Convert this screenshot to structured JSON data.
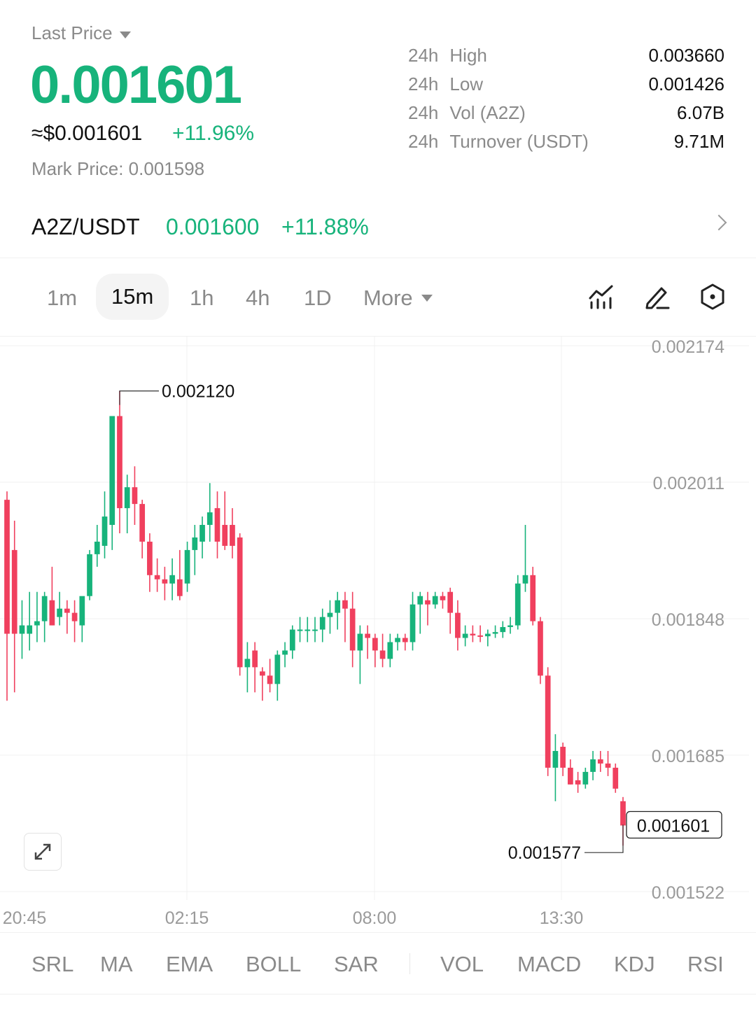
{
  "header": {
    "last_price_label": "Last Price",
    "last_price": "0.001601",
    "usd_price": "≈$0.001601",
    "change_pct": "+11.96%",
    "mark_price": "Mark Price:  0.001598"
  },
  "stats": [
    {
      "period": "24h",
      "name": "High",
      "value": "0.003660"
    },
    {
      "period": "24h",
      "name": "Low",
      "value": "0.001426"
    },
    {
      "period": "24h",
      "name": "Vol (A2Z)",
      "value": "6.07B"
    },
    {
      "period": "24h",
      "name": "Turnover (USDT)",
      "value": "9.71M"
    }
  ],
  "pair": {
    "name": "A2Z/USDT",
    "price": "0.001600",
    "change": "+11.88%"
  },
  "timeframes": {
    "items": [
      "1m",
      "15m",
      "1h",
      "4h",
      "1D"
    ],
    "selected": "15m",
    "more_label": "More"
  },
  "icons": [
    "indicator-chart-icon",
    "draw-pencil-icon",
    "settings-hexagon-icon",
    "expand-icon"
  ],
  "colors": {
    "up": "#17b37b",
    "down": "#f0405e",
    "muted": "#8a8a8a"
  },
  "chart_data": {
    "type": "candlestick",
    "y_axis_labels": [
      "0.002174",
      "0.002011",
      "0.001848",
      "0.001685",
      "0.001522"
    ],
    "x_axis_labels": [
      "20:45",
      "02:15",
      "08:00",
      "13:30"
    ],
    "ylim": [
      0.001522,
      0.002174
    ],
    "high_marker": "0.002120",
    "low_marker": "0.001577",
    "current_price_tag": "0.001601",
    "candles": [
      {
        "o": 0.00199,
        "h": 0.002,
        "l": 0.00175,
        "c": 0.00183
      },
      {
        "o": 0.00193,
        "h": 0.001965,
        "l": 0.00176,
        "c": 0.00183
      },
      {
        "o": 0.00183,
        "h": 0.00187,
        "l": 0.0018,
        "c": 0.00184
      },
      {
        "o": 0.00183,
        "h": 0.00188,
        "l": 0.00181,
        "c": 0.00184
      },
      {
        "o": 0.00184,
        "h": 0.00188,
        "l": 0.00182,
        "c": 0.001845
      },
      {
        "o": 0.001845,
        "h": 0.00188,
        "l": 0.00182,
        "c": 0.001875
      },
      {
        "o": 0.00187,
        "h": 0.00191,
        "l": 0.00184,
        "c": 0.00184
      },
      {
        "o": 0.00185,
        "h": 0.00188,
        "l": 0.00184,
        "c": 0.00186
      },
      {
        "o": 0.00186,
        "h": 0.00187,
        "l": 0.00183,
        "c": 0.001855
      },
      {
        "o": 0.001855,
        "h": 0.00187,
        "l": 0.00182,
        "c": 0.001845
      },
      {
        "o": 0.00184,
        "h": 0.00187,
        "l": 0.00182,
        "c": 0.001875
      },
      {
        "o": 0.001875,
        "h": 0.00193,
        "l": 0.00187,
        "c": 0.001925
      },
      {
        "o": 0.001925,
        "h": 0.00196,
        "l": 0.00191,
        "c": 0.00194
      },
      {
        "o": 0.001935,
        "h": 0.002,
        "l": 0.00192,
        "c": 0.00197
      },
      {
        "o": 0.00196,
        "h": 0.00209,
        "l": 0.00193,
        "c": 0.00209
      },
      {
        "o": 0.00209,
        "h": 0.00212,
        "l": 0.00195,
        "c": 0.00198
      },
      {
        "o": 0.00198,
        "h": 0.00202,
        "l": 0.00195,
        "c": 0.002005
      },
      {
        "o": 0.002005,
        "h": 0.00203,
        "l": 0.00196,
        "c": 0.001985
      },
      {
        "o": 0.001985,
        "h": 0.00199,
        "l": 0.00192,
        "c": 0.00194
      },
      {
        "o": 0.00194,
        "h": 0.00195,
        "l": 0.00188,
        "c": 0.0019
      },
      {
        "o": 0.0019,
        "h": 0.00192,
        "l": 0.00188,
        "c": 0.001895
      },
      {
        "o": 0.001895,
        "h": 0.00191,
        "l": 0.00187,
        "c": 0.00189
      },
      {
        "o": 0.00189,
        "h": 0.00192,
        "l": 0.00187,
        "c": 0.0019
      },
      {
        "o": 0.001895,
        "h": 0.00193,
        "l": 0.00187,
        "c": 0.001875
      },
      {
        "o": 0.00189,
        "h": 0.00194,
        "l": 0.00188,
        "c": 0.00193
      },
      {
        "o": 0.00193,
        "h": 0.00196,
        "l": 0.0019,
        "c": 0.001945
      },
      {
        "o": 0.00194,
        "h": 0.00197,
        "l": 0.00192,
        "c": 0.00196
      },
      {
        "o": 0.00196,
        "h": 0.00201,
        "l": 0.00194,
        "c": 0.001975
      },
      {
        "o": 0.00198,
        "h": 0.002,
        "l": 0.00192,
        "c": 0.00194
      },
      {
        "o": 0.00196,
        "h": 0.002,
        "l": 0.00193,
        "c": 0.001935
      },
      {
        "o": 0.00196,
        "h": 0.00198,
        "l": 0.00192,
        "c": 0.001935
      },
      {
        "o": 0.001945,
        "h": 0.00195,
        "l": 0.00178,
        "c": 0.00179
      },
      {
        "o": 0.00179,
        "h": 0.00182,
        "l": 0.00176,
        "c": 0.0018
      },
      {
        "o": 0.00181,
        "h": 0.00182,
        "l": 0.00176,
        "c": 0.00179
      },
      {
        "o": 0.001785,
        "h": 0.00179,
        "l": 0.00175,
        "c": 0.00178
      },
      {
        "o": 0.00178,
        "h": 0.0018,
        "l": 0.00176,
        "c": 0.00177
      },
      {
        "o": 0.00177,
        "h": 0.00181,
        "l": 0.00175,
        "c": 0.001805
      },
      {
        "o": 0.001805,
        "h": 0.00182,
        "l": 0.00179,
        "c": 0.00181
      },
      {
        "o": 0.00181,
        "h": 0.00184,
        "l": 0.0018,
        "c": 0.001835
      },
      {
        "o": 0.001835,
        "h": 0.00185,
        "l": 0.00182,
        "c": 0.001835
      },
      {
        "o": 0.001835,
        "h": 0.00185,
        "l": 0.00182,
        "c": 0.001835
      },
      {
        "o": 0.001835,
        "h": 0.00185,
        "l": 0.00182,
        "c": 0.001835
      },
      {
        "o": 0.001835,
        "h": 0.00186,
        "l": 0.00182,
        "c": 0.00185
      },
      {
        "o": 0.00185,
        "h": 0.00187,
        "l": 0.00183,
        "c": 0.001855
      },
      {
        "o": 0.001855,
        "h": 0.00188,
        "l": 0.001835,
        "c": 0.00187
      },
      {
        "o": 0.00187,
        "h": 0.00188,
        "l": 0.00182,
        "c": 0.00186
      },
      {
        "o": 0.00186,
        "h": 0.00188,
        "l": 0.00179,
        "c": 0.00181
      },
      {
        "o": 0.00181,
        "h": 0.00184,
        "l": 0.00177,
        "c": 0.00183
      },
      {
        "o": 0.00183,
        "h": 0.00184,
        "l": 0.0018,
        "c": 0.001825
      },
      {
        "o": 0.001825,
        "h": 0.00183,
        "l": 0.00179,
        "c": 0.00181
      },
      {
        "o": 0.00181,
        "h": 0.00183,
        "l": 0.00179,
        "c": 0.0018
      },
      {
        "o": 0.0018,
        "h": 0.00183,
        "l": 0.00179,
        "c": 0.00182
      },
      {
        "o": 0.00182,
        "h": 0.00183,
        "l": 0.00181,
        "c": 0.001825
      },
      {
        "o": 0.001825,
        "h": 0.00183,
        "l": 0.00181,
        "c": 0.00182
      },
      {
        "o": 0.00182,
        "h": 0.00188,
        "l": 0.00181,
        "c": 0.001865
      },
      {
        "o": 0.001865,
        "h": 0.00188,
        "l": 0.00183,
        "c": 0.001875
      },
      {
        "o": 0.00187,
        "h": 0.00188,
        "l": 0.00184,
        "c": 0.001865
      },
      {
        "o": 0.001865,
        "h": 0.00188,
        "l": 0.00186,
        "c": 0.001875
      },
      {
        "o": 0.001875,
        "h": 0.00188,
        "l": 0.00186,
        "c": 0.00187
      },
      {
        "o": 0.00188,
        "h": 0.001885,
        "l": 0.00183,
        "c": 0.001855
      },
      {
        "o": 0.001855,
        "h": 0.00187,
        "l": 0.00181,
        "c": 0.001825
      },
      {
        "o": 0.001825,
        "h": 0.00184,
        "l": 0.001815,
        "c": 0.00183
      },
      {
        "o": 0.00183,
        "h": 0.00184,
        "l": 0.00182,
        "c": 0.001828
      },
      {
        "o": 0.001828,
        "h": 0.00184,
        "l": 0.00182,
        "c": 0.001827
      },
      {
        "o": 0.001827,
        "h": 0.001835,
        "l": 0.001815,
        "c": 0.00183
      },
      {
        "o": 0.00183,
        "h": 0.00184,
        "l": 0.001825,
        "c": 0.001832
      },
      {
        "o": 0.001832,
        "h": 0.001845,
        "l": 0.001825,
        "c": 0.001838
      },
      {
        "o": 0.001838,
        "h": 0.00185,
        "l": 0.00183,
        "c": 0.00184
      },
      {
        "o": 0.00184,
        "h": 0.0019,
        "l": 0.001835,
        "c": 0.00189
      },
      {
        "o": 0.00189,
        "h": 0.00196,
        "l": 0.00188,
        "c": 0.0019
      },
      {
        "o": 0.0019,
        "h": 0.00191,
        "l": 0.00184,
        "c": 0.001845
      },
      {
        "o": 0.001845,
        "h": 0.00185,
        "l": 0.00177,
        "c": 0.00178
      },
      {
        "o": 0.00178,
        "h": 0.00179,
        "l": 0.00166,
        "c": 0.00167
      },
      {
        "o": 0.00167,
        "h": 0.00171,
        "l": 0.00163,
        "c": 0.00169
      },
      {
        "o": 0.001695,
        "h": 0.0017,
        "l": 0.00166,
        "c": 0.00167
      },
      {
        "o": 0.00167,
        "h": 0.00168,
        "l": 0.00165,
        "c": 0.00165
      },
      {
        "o": 0.001655,
        "h": 0.001665,
        "l": 0.00164,
        "c": 0.00165
      },
      {
        "o": 0.00165,
        "h": 0.00167,
        "l": 0.001645,
        "c": 0.001665
      },
      {
        "o": 0.001665,
        "h": 0.00169,
        "l": 0.001655,
        "c": 0.00168
      },
      {
        "o": 0.00168,
        "h": 0.00169,
        "l": 0.001665,
        "c": 0.001675
      },
      {
        "o": 0.001675,
        "h": 0.00169,
        "l": 0.00166,
        "c": 0.00167
      },
      {
        "o": 0.00167,
        "h": 0.001675,
        "l": 0.00164,
        "c": 0.001645
      },
      {
        "o": 0.00163,
        "h": 0.001635,
        "l": 0.001577,
        "c": 0.001601
      }
    ]
  },
  "indicators": {
    "main": [
      "SRL",
      "MA",
      "EMA",
      "BOLL",
      "SAR"
    ],
    "sub": [
      "VOL",
      "MACD",
      "KDJ",
      "RSI"
    ]
  }
}
